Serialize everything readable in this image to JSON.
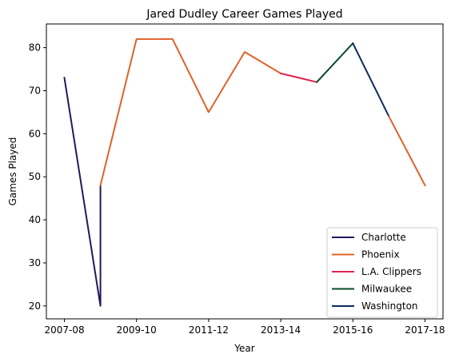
{
  "chart_data": {
    "type": "line",
    "title": "Jared Dudley Career Games Played",
    "xlabel": "Year",
    "ylabel": "Games Played",
    "x_tick_labels": [
      "2007-08",
      "2009-10",
      "2011-12",
      "2013-14",
      "2015-16",
      "2017-18"
    ],
    "y_ticks": [
      20,
      30,
      40,
      50,
      60,
      70,
      80
    ],
    "ylim": [
      17,
      85.5
    ],
    "grid": false,
    "legend_position": "bottom-right",
    "series": [
      {
        "name": "Charlotte",
        "color": "#23195a",
        "points": [
          [
            "2007-08",
            73
          ],
          [
            "2008-09",
            20
          ],
          [
            "2008-09",
            48
          ]
        ]
      },
      {
        "name": "Phoenix",
        "color": "#e0622a",
        "points": [
          [
            "2008-09",
            48
          ],
          [
            "2009-10",
            82
          ],
          [
            "2010-11",
            82
          ],
          [
            "2011-12",
            65
          ],
          [
            "2012-13",
            79
          ],
          [
            "2013-14",
            74
          ]
        ]
      },
      {
        "name": "L.A. Clippers",
        "color": "#e1234e",
        "points": [
          [
            "2013-14",
            74
          ],
          [
            "2014-15",
            72
          ]
        ]
      },
      {
        "name": "Milwaukee",
        "color": "#0a4a2a",
        "points": [
          [
            "2014-15",
            72
          ],
          [
            "2015-16",
            81
          ]
        ]
      },
      {
        "name": "Washington",
        "color": "#0b2e5a",
        "points": [
          [
            "2015-16",
            81
          ],
          [
            "2016-17",
            64
          ]
        ]
      },
      {
        "name": "Phoenix",
        "color": "#e0622a",
        "points": [
          [
            "2016-17",
            64
          ],
          [
            "2017-18",
            48
          ]
        ]
      }
    ],
    "legend": [
      "Charlotte",
      "Phoenix",
      "L.A. Clippers",
      "Milwaukee",
      "Washington"
    ],
    "legend_colors": [
      "#23195a",
      "#e0622a",
      "#e1234e",
      "#0a4a2a",
      "#0b2e5a"
    ]
  }
}
